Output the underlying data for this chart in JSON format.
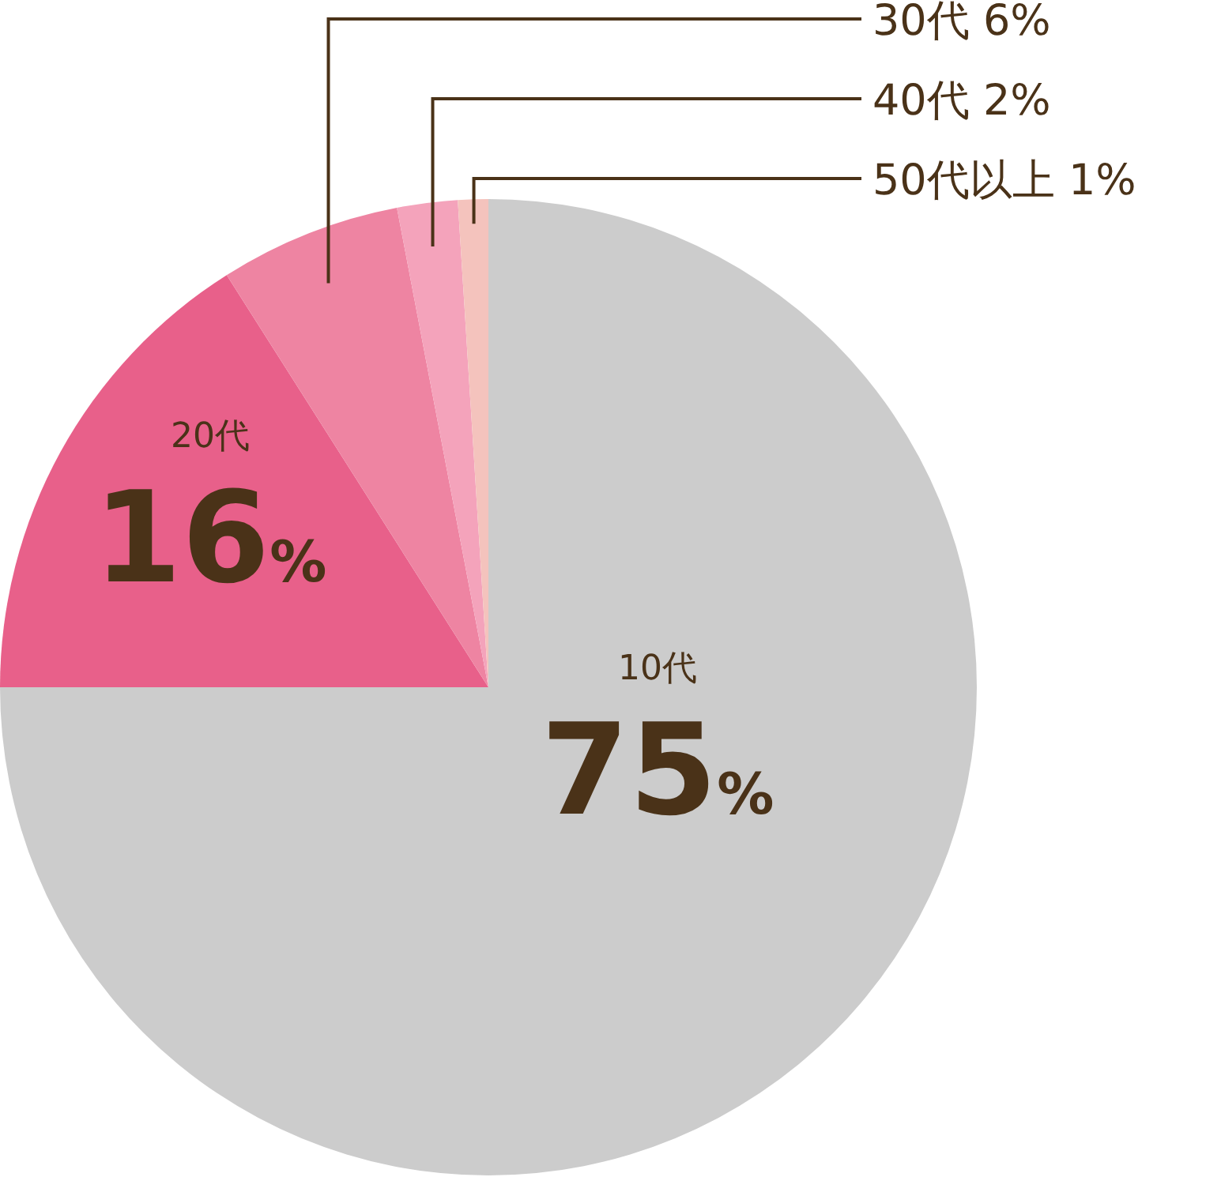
{
  "chart_data": {
    "type": "pie",
    "categories": [
      "10代",
      "20代",
      "30代",
      "40代",
      "50代以上"
    ],
    "values": [
      75,
      16,
      6,
      2,
      1
    ],
    "colors": [
      "#cccccc",
      "#e8608a",
      "#ee84a2",
      "#f4a3bb",
      "#f4c3bd"
    ],
    "value_labels": [
      "75%",
      "16%",
      "6%",
      "2%",
      "1%"
    ]
  }
}
